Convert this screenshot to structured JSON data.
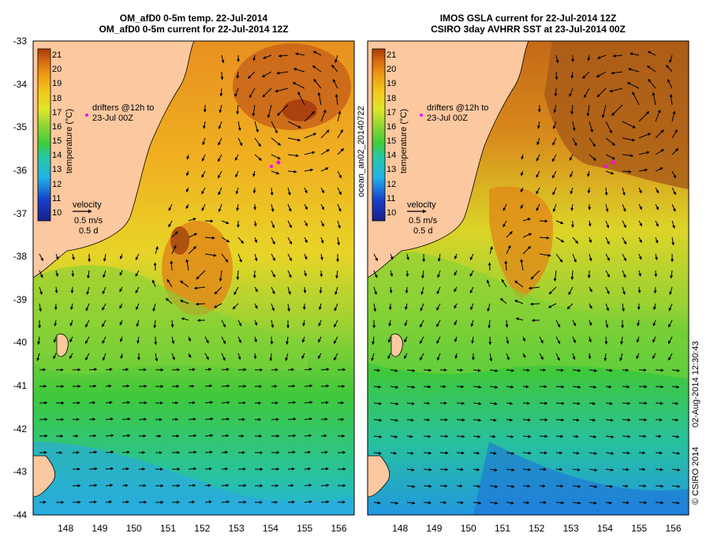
{
  "left_panel": {
    "title_line1": "OM_afD0 0-5m temp. 22-Jul-2014",
    "title_line2": "OM_afD0 0-5m current for 22-Jul-2014 12Z"
  },
  "right_panel": {
    "title_line1": "IMOS GSLA current for 22-Jul-2014 12Z",
    "title_line2": "CSIRO 3day AVHRR SST at 23-Jul-2014 00Z"
  },
  "axes": {
    "lat_labels": [
      "-33",
      "-34",
      "-35",
      "-36",
      "-37",
      "-38",
      "-39",
      "-40",
      "-41",
      "-42",
      "-43",
      "-44"
    ],
    "lon_labels": [
      "148",
      "149",
      "150",
      "151",
      "152",
      "153",
      "154",
      "155",
      "156"
    ],
    "lat_range": [
      -44,
      -33
    ],
    "lon_range": [
      147.05,
      156.45
    ]
  },
  "colorbar": {
    "label": "temperature (°C)",
    "ticks": [
      "21",
      "20",
      "19",
      "18",
      "17",
      "16",
      "15",
      "14",
      "13",
      "12",
      "11",
      "10"
    ],
    "range": [
      9.5,
      21.5
    ],
    "colors": [
      "#1a1f8c",
      "#1540c8",
      "#1e78e6",
      "#23b0e8",
      "#27c8a8",
      "#3ecc3a",
      "#8ed633",
      "#e0e628",
      "#f2c81a",
      "#ee9a14",
      "#d86a10",
      "#a83c08"
    ]
  },
  "legend": {
    "drifters_text": "drifters @12h to",
    "drifters_date": "23-Jul 00Z",
    "velocity_title": "velocity",
    "velocity_scale": "0.5 m/s",
    "velocity_time": "0.5 d"
  },
  "side_labels": {
    "run_id": "ocean_an02_20140722",
    "timestamp": "02-Aug-2014 12:30:43",
    "copyright": "© CSIRO 2014"
  },
  "colors": {
    "land": "#fcc8a0",
    "arrow": "#000000",
    "drifter": "#ff00ff"
  }
}
